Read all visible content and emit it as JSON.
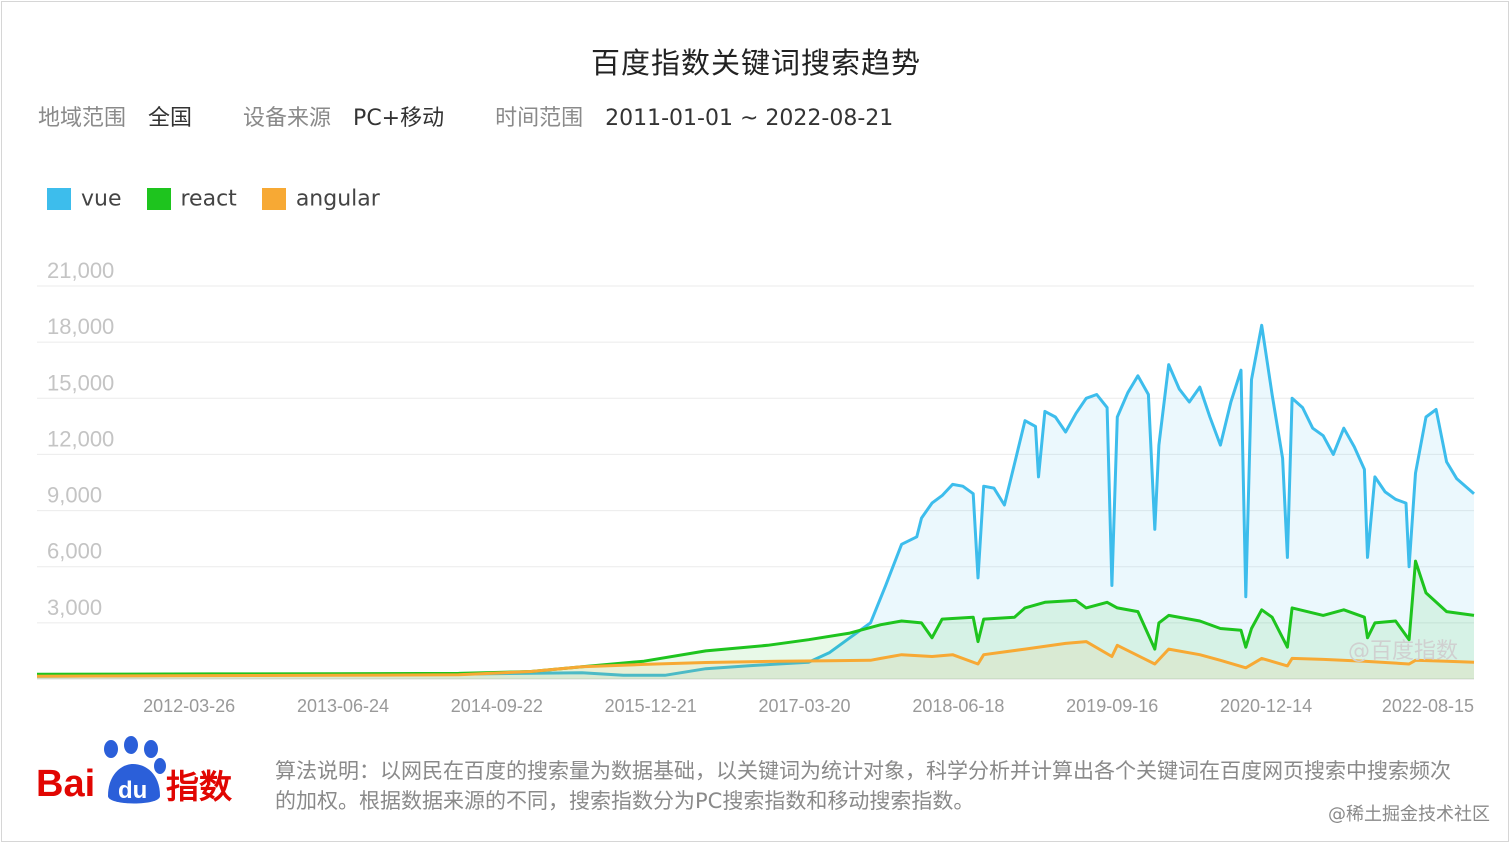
{
  "title": "百度指数关键词搜索趋势",
  "filters": [
    {
      "label": "地域范围",
      "value": "全国"
    },
    {
      "label": "设备来源",
      "value": "PC+移动"
    },
    {
      "label": "时间范围",
      "value": "2011-01-01 ~ 2022-08-21"
    }
  ],
  "legend": [
    {
      "name": "vue",
      "color": "#3dbdec"
    },
    {
      "name": "react",
      "color": "#1ec41e"
    },
    {
      "name": "angular",
      "color": "#f7a934"
    }
  ],
  "watermark": "@百度指数",
  "note": "算法说明：以网民在百度的搜索量为数据基础，以关键词为统计对象，科学分析并计算出各个关键词在百度网页搜索中搜索频次的加权。根据数据来源的不同，搜索指数分为PC搜索指数和移动搜索指数。",
  "logo": {
    "text_bai": "Bai",
    "text_du": "du",
    "text_zhishu": "指数"
  },
  "credit": "@稀土掘金技术社区",
  "chart_data": {
    "type": "area",
    "xlim": [
      "2011-01-01",
      "2022-08-21"
    ],
    "ylim": [
      0,
      21000
    ],
    "yticks": [
      3000,
      6000,
      9000,
      12000,
      15000,
      18000,
      21000
    ],
    "ytick_labels": [
      "3,000",
      "6,000",
      "9,000",
      "12,000",
      "15,000",
      "18,000",
      "21,000"
    ],
    "xticks": [
      "2012-03-26",
      "2013-06-24",
      "2014-09-22",
      "2015-12-21",
      "2017-03-20",
      "2018-06-18",
      "2019-09-16",
      "2020-12-14",
      "2022-08-15"
    ],
    "grid": true,
    "series": [
      {
        "name": "vue",
        "color": "#3dbdec",
        "points": [
          [
            "2011-01-01",
            150
          ],
          [
            "2012-06-01",
            200
          ],
          [
            "2013-06-01",
            230
          ],
          [
            "2014-06-01",
            260
          ],
          [
            "2014-12-01",
            300
          ],
          [
            "2015-06-01",
            330
          ],
          [
            "2015-10-01",
            200
          ],
          [
            "2016-02-01",
            200
          ],
          [
            "2016-06-01",
            550
          ],
          [
            "2016-10-01",
            700
          ],
          [
            "2017-01-01",
            800
          ],
          [
            "2017-04-01",
            900
          ],
          [
            "2017-06-01",
            1400
          ],
          [
            "2017-08-01",
            2200
          ],
          [
            "2017-10-01",
            3000
          ],
          [
            "2017-11-15",
            5000
          ],
          [
            "2018-01-01",
            7200
          ],
          [
            "2018-02-15",
            7600
          ],
          [
            "2018-03-01",
            8600
          ],
          [
            "2018-04-01",
            9400
          ],
          [
            "2018-05-01",
            9800
          ],
          [
            "2018-06-01",
            10400
          ],
          [
            "2018-07-01",
            10300
          ],
          [
            "2018-08-01",
            9900
          ],
          [
            "2018-08-15",
            5400
          ],
          [
            "2018-09-01",
            10300
          ],
          [
            "2018-10-01",
            10200
          ],
          [
            "2018-11-01",
            9300
          ],
          [
            "2018-12-01",
            11500
          ],
          [
            "2019-01-01",
            13800
          ],
          [
            "2019-02-01",
            13500
          ],
          [
            "2019-02-10",
            10800
          ],
          [
            "2019-03-01",
            14300
          ],
          [
            "2019-04-01",
            14000
          ],
          [
            "2019-05-01",
            13200
          ],
          [
            "2019-06-01",
            14200
          ],
          [
            "2019-07-01",
            15000
          ],
          [
            "2019-08-01",
            15200
          ],
          [
            "2019-09-01",
            14500
          ],
          [
            "2019-09-15",
            5000
          ],
          [
            "2019-10-01",
            14000
          ],
          [
            "2019-11-01",
            15300
          ],
          [
            "2019-12-01",
            16200
          ],
          [
            "2020-01-01",
            15200
          ],
          [
            "2020-01-20",
            8000
          ],
          [
            "2020-02-01",
            12500
          ],
          [
            "2020-03-01",
            16800
          ],
          [
            "2020-04-01",
            15500
          ],
          [
            "2020-05-01",
            14800
          ],
          [
            "2020-06-01",
            15600
          ],
          [
            "2020-07-01",
            14000
          ],
          [
            "2020-08-01",
            12500
          ],
          [
            "2020-09-01",
            14800
          ],
          [
            "2020-10-01",
            16500
          ],
          [
            "2020-10-15",
            4400
          ],
          [
            "2020-11-01",
            16000
          ],
          [
            "2020-12-01",
            18900
          ],
          [
            "2021-01-01",
            15200
          ],
          [
            "2021-02-01",
            11800
          ],
          [
            "2021-02-15",
            6500
          ],
          [
            "2021-03-01",
            15000
          ],
          [
            "2021-04-01",
            14500
          ],
          [
            "2021-05-01",
            13400
          ],
          [
            "2021-06-01",
            13000
          ],
          [
            "2021-07-01",
            12000
          ],
          [
            "2021-08-01",
            13400
          ],
          [
            "2021-09-01",
            12400
          ],
          [
            "2021-10-01",
            11200
          ],
          [
            "2021-10-10",
            6500
          ],
          [
            "2021-11-01",
            10800
          ],
          [
            "2021-12-01",
            10000
          ],
          [
            "2022-01-01",
            9600
          ],
          [
            "2022-02-01",
            9400
          ],
          [
            "2022-02-10",
            6000
          ],
          [
            "2022-03-01",
            11000
          ],
          [
            "2022-04-01",
            14000
          ],
          [
            "2022-05-01",
            14400
          ],
          [
            "2022-06-01",
            11600
          ],
          [
            "2022-07-01",
            10700
          ],
          [
            "2022-08-21",
            9900
          ]
        ]
      },
      {
        "name": "react",
        "color": "#1ec41e",
        "points": [
          [
            "2011-01-01",
            250
          ],
          [
            "2012-06-01",
            270
          ],
          [
            "2013-06-01",
            280
          ],
          [
            "2014-06-01",
            300
          ],
          [
            "2015-01-01",
            400
          ],
          [
            "2015-06-01",
            650
          ],
          [
            "2015-12-01",
            950
          ],
          [
            "2016-06-01",
            1500
          ],
          [
            "2016-12-01",
            1800
          ],
          [
            "2017-04-01",
            2100
          ],
          [
            "2017-08-01",
            2450
          ],
          [
            "2017-11-01",
            2900
          ],
          [
            "2018-01-01",
            3100
          ],
          [
            "2018-03-01",
            3000
          ],
          [
            "2018-04-01",
            2200
          ],
          [
            "2018-05-01",
            3200
          ],
          [
            "2018-08-01",
            3300
          ],
          [
            "2018-08-15",
            2000
          ],
          [
            "2018-09-01",
            3200
          ],
          [
            "2018-12-01",
            3300
          ],
          [
            "2019-01-01",
            3800
          ],
          [
            "2019-03-01",
            4100
          ],
          [
            "2019-06-01",
            4200
          ],
          [
            "2019-07-01",
            3800
          ],
          [
            "2019-09-01",
            4100
          ],
          [
            "2019-10-01",
            3800
          ],
          [
            "2019-12-01",
            3600
          ],
          [
            "2020-01-20",
            1600
          ],
          [
            "2020-02-01",
            3000
          ],
          [
            "2020-03-01",
            3400
          ],
          [
            "2020-06-01",
            3100
          ],
          [
            "2020-08-01",
            2700
          ],
          [
            "2020-10-01",
            2600
          ],
          [
            "2020-10-15",
            1700
          ],
          [
            "2020-11-01",
            2700
          ],
          [
            "2020-12-01",
            3700
          ],
          [
            "2021-01-01",
            3300
          ],
          [
            "2021-02-15",
            1700
          ],
          [
            "2021-03-01",
            3800
          ],
          [
            "2021-06-01",
            3400
          ],
          [
            "2021-08-01",
            3700
          ],
          [
            "2021-10-01",
            3300
          ],
          [
            "2021-10-10",
            2200
          ],
          [
            "2021-11-01",
            3000
          ],
          [
            "2022-01-01",
            3100
          ],
          [
            "2022-02-10",
            2100
          ],
          [
            "2022-02-20",
            4300
          ],
          [
            "2022-03-01",
            6300
          ],
          [
            "2022-04-01",
            4600
          ],
          [
            "2022-06-01",
            3600
          ],
          [
            "2022-08-21",
            3400
          ]
        ]
      },
      {
        "name": "angular",
        "color": "#f7a934",
        "points": [
          [
            "2011-01-01",
            150
          ],
          [
            "2012-06-01",
            180
          ],
          [
            "2013-06-01",
            200
          ],
          [
            "2014-06-01",
            230
          ],
          [
            "2015-01-01",
            400
          ],
          [
            "2015-06-01",
            650
          ],
          [
            "2015-12-01",
            780
          ],
          [
            "2016-06-01",
            880
          ],
          [
            "2017-01-01",
            950
          ],
          [
            "2017-06-01",
            980
          ],
          [
            "2017-10-01",
            1000
          ],
          [
            "2017-11-01",
            1100
          ],
          [
            "2018-01-01",
            1300
          ],
          [
            "2018-04-01",
            1200
          ],
          [
            "2018-06-01",
            1300
          ],
          [
            "2018-08-15",
            800
          ],
          [
            "2018-09-01",
            1300
          ],
          [
            "2019-01-01",
            1600
          ],
          [
            "2019-05-01",
            1900
          ],
          [
            "2019-07-01",
            2000
          ],
          [
            "2019-09-15",
            1200
          ],
          [
            "2019-10-01",
            1800
          ],
          [
            "2020-01-20",
            800
          ],
          [
            "2020-03-01",
            1600
          ],
          [
            "2020-06-01",
            1300
          ],
          [
            "2020-08-01",
            1000
          ],
          [
            "2020-10-15",
            600
          ],
          [
            "2020-12-01",
            1100
          ],
          [
            "2021-02-15",
            700
          ],
          [
            "2021-03-01",
            1100
          ],
          [
            "2021-06-01",
            1050
          ],
          [
            "2021-10-01",
            950
          ],
          [
            "2022-02-10",
            800
          ],
          [
            "2022-03-01",
            1000
          ],
          [
            "2022-06-01",
            950
          ],
          [
            "2022-08-21",
            900
          ]
        ]
      }
    ]
  }
}
